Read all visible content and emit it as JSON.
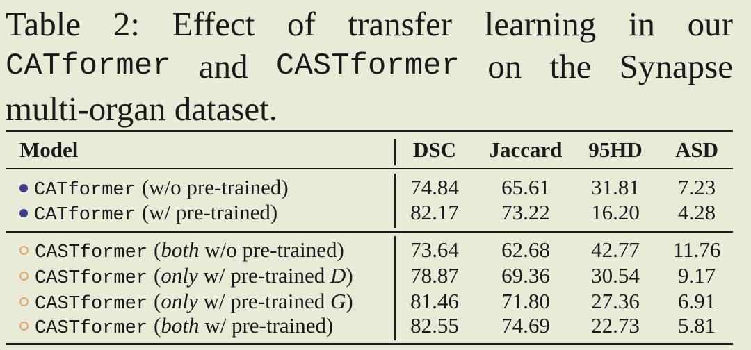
{
  "caption": {
    "line1": [
      "Table",
      "2:",
      "Effect",
      "of",
      "transfer",
      "learning",
      "in",
      "our"
    ],
    "line2_mono1": "CATformer",
    "line2_mid": "and",
    "line2_mono2": "CASTformer",
    "line2_rest": [
      "on",
      "the",
      "Synapse"
    ],
    "line3": "multi-organ dataset."
  },
  "headers": {
    "model": "Model",
    "dsc": "DSC",
    "jaccard": "Jaccard",
    "hd95": "95HD",
    "asd": "ASD"
  },
  "rows": [
    {
      "marker": "filled",
      "name": "CATformer",
      "desc": "(w/o pre-trained)",
      "dsc": "74.84",
      "jaccard": "65.61",
      "hd95": "31.81",
      "asd": "7.23"
    },
    {
      "marker": "filled",
      "name": "CATformer",
      "desc": "(w/ pre-trained)",
      "dsc": "82.17",
      "jaccard": "73.22",
      "hd95": "16.20",
      "asd": "4.28"
    },
    {
      "marker": "hollow",
      "name": "CASTformer",
      "desc_open": "(",
      "desc_it": "both",
      "desc_mid": " w/o pre-trained",
      "desc_it2": "",
      "desc_close": ")",
      "dsc": "73.64",
      "jaccard": "62.68",
      "hd95": "42.77",
      "asd": "11.76"
    },
    {
      "marker": "hollow",
      "name": "CASTformer",
      "desc_open": "(",
      "desc_it": "only",
      "desc_mid": " w/ pre-trained ",
      "desc_it2": "D",
      "desc_close": ")",
      "dsc": "78.87",
      "jaccard": "69.36",
      "hd95": "30.54",
      "asd": "9.17"
    },
    {
      "marker": "hollow",
      "name": "CASTformer",
      "desc_open": "(",
      "desc_it": "only",
      "desc_mid": " w/ pre-trained ",
      "desc_it2": "G",
      "desc_close": ")",
      "dsc": "81.46",
      "jaccard": "71.80",
      "hd95": "27.36",
      "asd": "6.91"
    },
    {
      "marker": "hollow",
      "name": "CASTformer",
      "desc_open": "(",
      "desc_it": "both",
      "desc_mid": " w/ pre-trained",
      "desc_it2": "",
      "desc_close": ")",
      "dsc": "82.55",
      "jaccard": "74.69",
      "hd95": "22.73",
      "asd": "5.81"
    }
  ],
  "colors": {
    "background": "#e7ebd8",
    "filled_marker": "#3c3e8c",
    "hollow_marker": "#e0a86a",
    "text": "#1a1a1a"
  }
}
